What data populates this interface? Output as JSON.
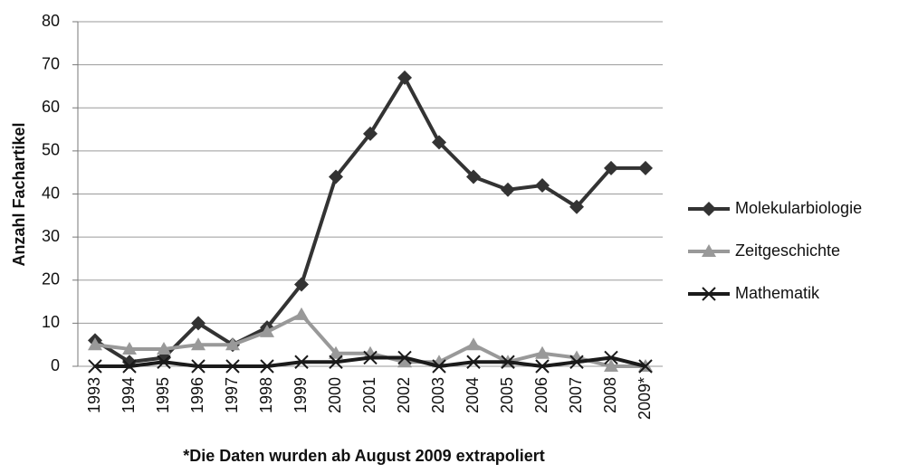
{
  "chart_data": {
    "type": "line",
    "y_label": "Anzahl Fachartikel",
    "note": "*Die Daten wurden ab August 2009 extrapoliert",
    "categories": [
      "1993",
      "1994",
      "1995",
      "1996",
      "1997",
      "1998",
      "1999",
      "2000",
      "2001",
      "2002",
      "2003",
      "2004",
      "2005",
      "2006",
      "2007",
      "2008",
      "2009*"
    ],
    "series": [
      {
        "name": "Molekularbiologie",
        "color": "#333333",
        "marker": "diamond",
        "values": [
          6,
          1,
          2,
          10,
          5,
          9,
          19,
          44,
          54,
          67,
          52,
          44,
          41,
          42,
          37,
          46,
          46
        ]
      },
      {
        "name": "Zeitgeschichte",
        "color": "#999999",
        "marker": "triangle",
        "values": [
          5,
          4,
          4,
          5,
          5,
          8,
          12,
          3,
          3,
          1,
          1,
          5,
          1,
          3,
          2,
          0,
          0
        ]
      },
      {
        "name": "Mathematik",
        "color": "#1a1a1a",
        "marker": "x",
        "values": [
          0,
          0,
          1,
          0,
          0,
          0,
          1,
          1,
          2,
          2,
          0,
          1,
          1,
          0,
          1,
          2,
          0
        ]
      }
    ],
    "ylim": [
      0,
      80
    ],
    "yticks": [
      0,
      10,
      20,
      30,
      40,
      50,
      60,
      70,
      80
    ],
    "grid": true,
    "legend": "right"
  }
}
